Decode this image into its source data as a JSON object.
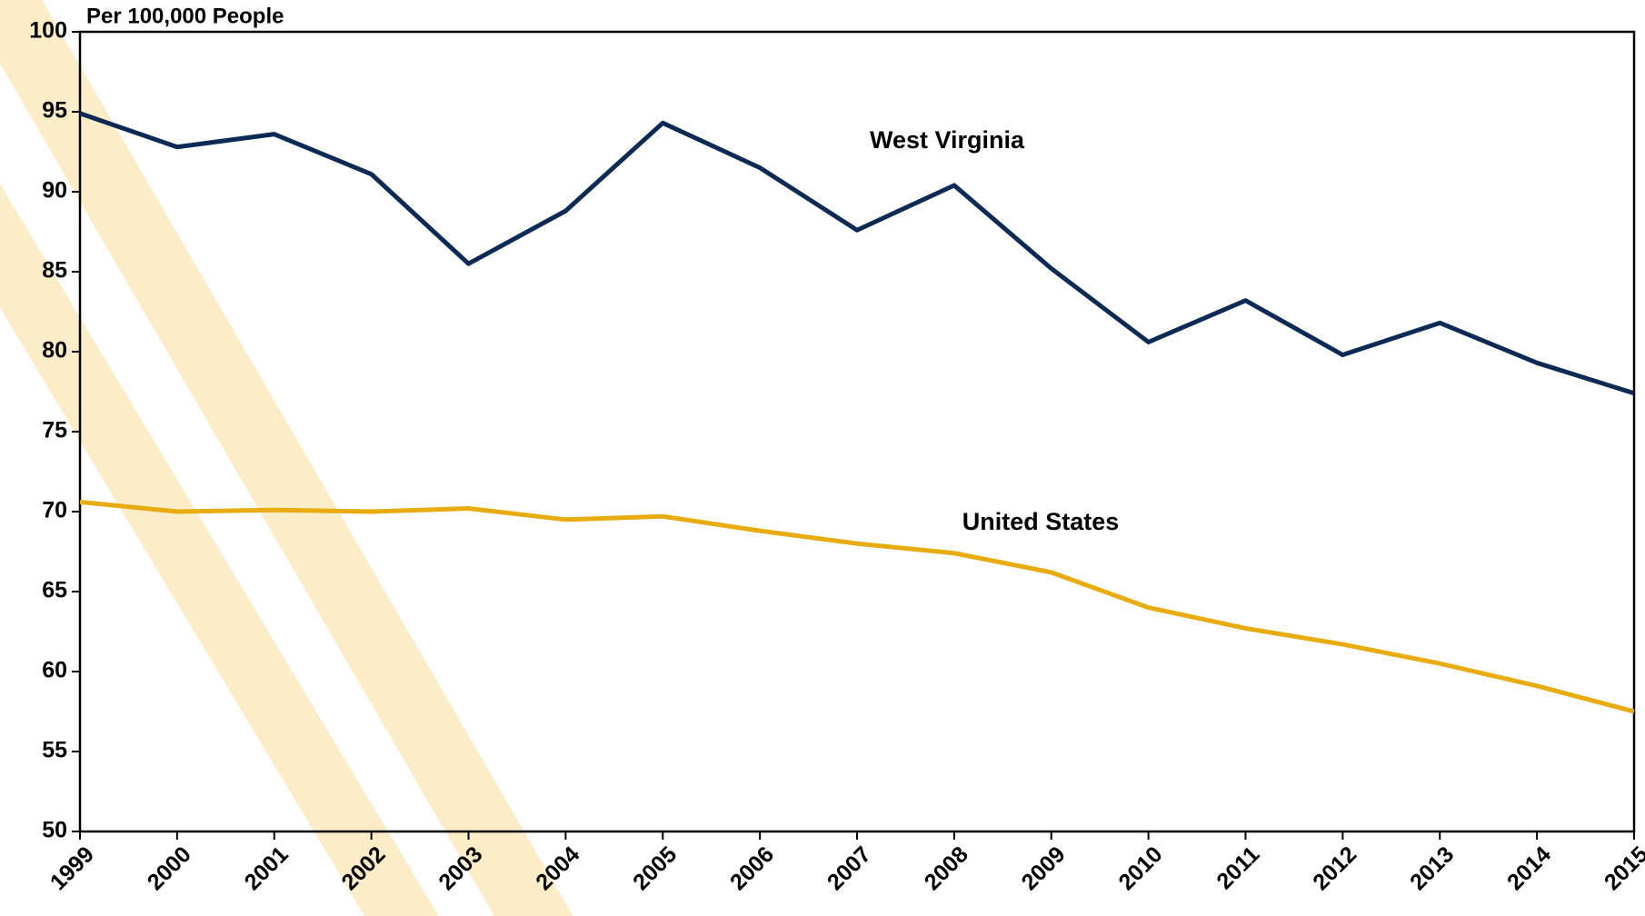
{
  "chart_data": {
    "type": "line",
    "ylabel": "Per 100,000 People",
    "categories": [
      "1999",
      "2000",
      "2001",
      "2002",
      "2003",
      "2004",
      "2005",
      "2006",
      "2007",
      "2008",
      "2009",
      "2010",
      "2011",
      "2012",
      "2013",
      "2014",
      "2015"
    ],
    "series": [
      {
        "name": "West Virginia",
        "color": "#0d2a54",
        "values": [
          94.9,
          92.8,
          93.6,
          91.1,
          85.5,
          88.8,
          94.3,
          91.5,
          87.6,
          90.4,
          85.2,
          80.6,
          83.2,
          79.8,
          81.8,
          79.3,
          77.4
        ]
      },
      {
        "name": "United States",
        "color": "#e8ac10",
        "values": [
          70.6,
          70.0,
          70.1,
          70.0,
          70.2,
          69.5,
          69.7,
          68.8,
          68.0,
          67.4,
          66.2,
          64.0,
          62.7,
          61.7,
          60.5,
          59.1,
          57.5
        ]
      }
    ],
    "ylim": [
      50,
      100
    ],
    "yticks": [
      50,
      55,
      60,
      65,
      70,
      75,
      80,
      85,
      90,
      95,
      100
    ],
    "grid": false
  }
}
